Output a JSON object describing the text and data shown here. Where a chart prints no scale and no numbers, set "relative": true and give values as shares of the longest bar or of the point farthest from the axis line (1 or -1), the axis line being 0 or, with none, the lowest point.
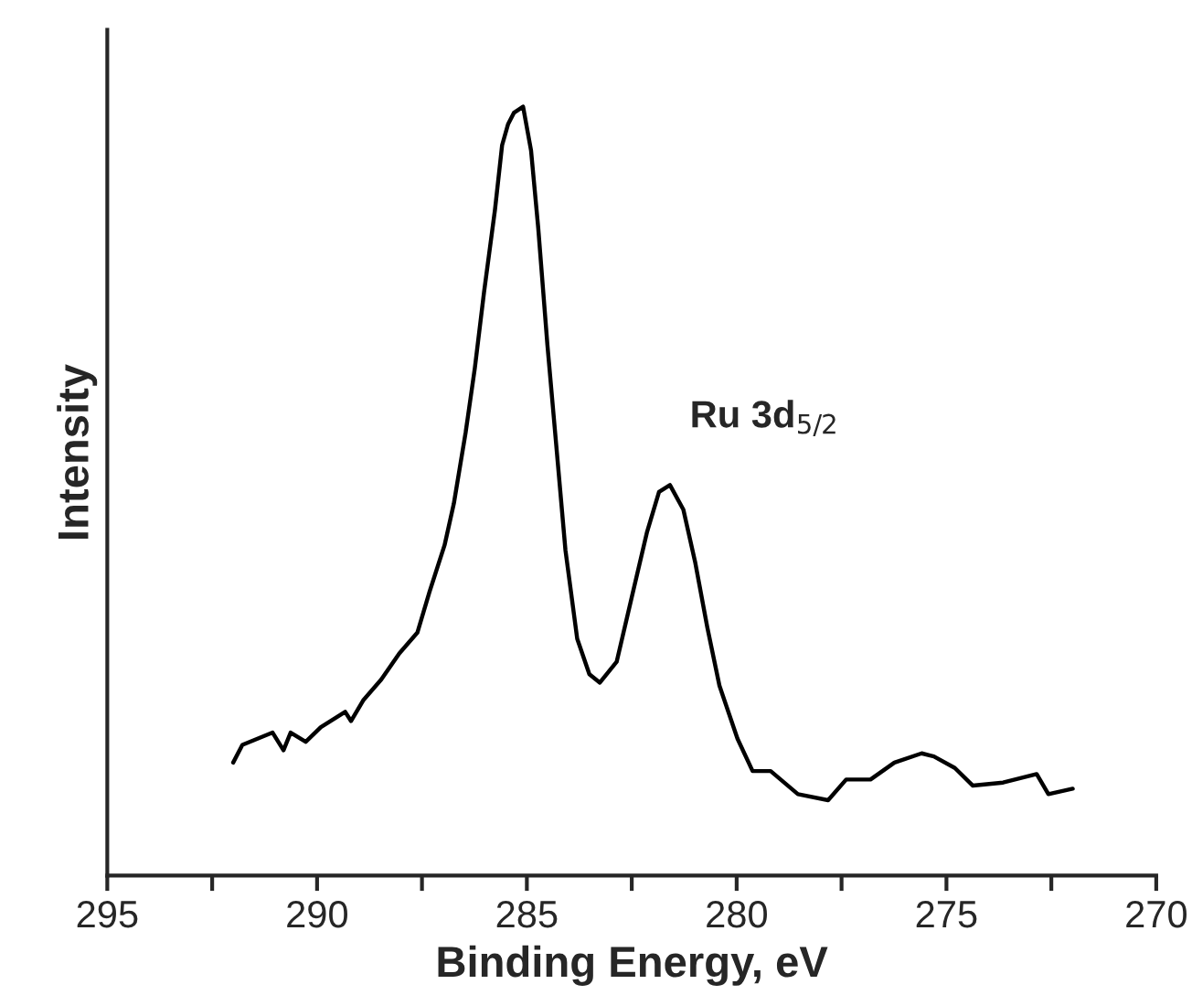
{
  "chart_data": {
    "type": "line",
    "relative": true,
    "xlabel": "Binding Energy, eV",
    "ylabel": "Intensity",
    "xlim": [
      295,
      270
    ],
    "xticks": [
      295,
      {
        "value": 292.5,
        "label": null
      },
      290,
      {
        "value": 287.5,
        "label": null
      },
      285,
      {
        "value": 282.5,
        "label": null
      },
      280,
      {
        "value": 277.5,
        "label": null
      },
      275,
      {
        "value": 272.5,
        "label": null
      },
      270
    ],
    "annotations": [
      {
        "text": "Ru 3d$_{5/2}$",
        "x": 281.6,
        "y": 0.51
      }
    ],
    "grid": false,
    "legend": false,
    "marker": "none",
    "line_style": "solid",
    "series": [
      {
        "color": "#000000",
        "x": [
          292.0,
          291.78,
          291.06,
          290.8,
          290.63,
          290.27,
          289.91,
          289.33,
          289.19,
          288.9,
          288.47,
          288.04,
          287.61,
          287.32,
          286.96,
          286.74,
          286.46,
          286.24,
          286.02,
          285.76,
          285.59,
          285.45,
          285.31,
          285.09,
          284.9,
          284.73,
          284.51,
          284.3,
          284.08,
          283.8,
          283.51,
          283.26,
          282.86,
          282.5,
          282.14,
          281.85,
          281.59,
          281.27,
          280.99,
          280.7,
          280.41,
          279.98,
          279.62,
          279.19,
          278.54,
          277.82,
          277.39,
          276.81,
          276.24,
          275.59,
          275.3,
          274.8,
          274.37,
          273.65,
          272.85,
          272.57,
          271.99
        ],
        "values": [
          0.147,
          0.17,
          0.186,
          0.163,
          0.186,
          0.174,
          0.193,
          0.213,
          0.201,
          0.228,
          0.255,
          0.289,
          0.316,
          0.369,
          0.43,
          0.484,
          0.576,
          0.66,
          0.759,
          0.866,
          0.95,
          0.977,
          0.992,
          1.0,
          0.943,
          0.843,
          0.69,
          0.56,
          0.423,
          0.308,
          0.262,
          0.251,
          0.278,
          0.362,
          0.446,
          0.499,
          0.508,
          0.476,
          0.408,
          0.323,
          0.247,
          0.178,
          0.136,
          0.136,
          0.106,
          0.098,
          0.125,
          0.125,
          0.147,
          0.159,
          0.155,
          0.14,
          0.117,
          0.121,
          0.132,
          0.106,
          0.113
        ]
      }
    ]
  }
}
